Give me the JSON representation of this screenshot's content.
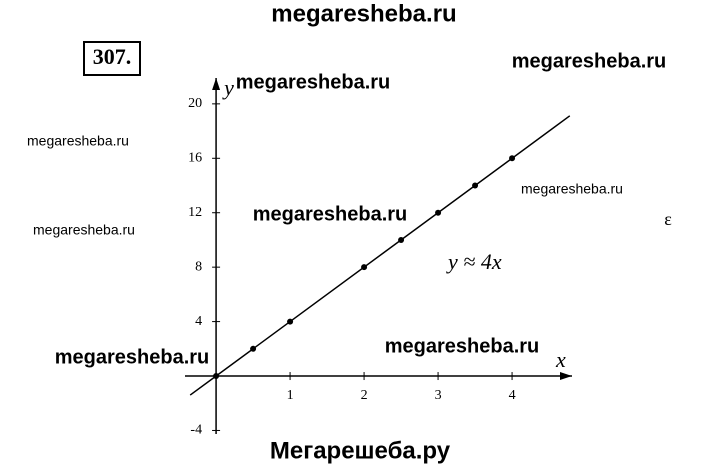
{
  "problem_number": "307.",
  "watermarks": [
    "megaresheba.ru",
    "megaresheba.ru",
    "megaresheba.ru",
    "megaresheba.ru",
    "megaresheba.ru",
    "megaresheba.ru",
    "megaresheba.ru",
    "megaresheba.ru",
    "megaresheba.ru",
    "Мегарешеба.ру"
  ],
  "margin_mark": "ε",
  "chart_data": {
    "type": "line",
    "x_label": "x",
    "y_label": "y",
    "annotation": "y ≈ 4x",
    "color": "#000000",
    "points": {
      "x": [
        0,
        0.5,
        1,
        2,
        2.5,
        3,
        3.5,
        4
      ],
      "values": [
        0,
        2,
        4,
        8,
        10,
        12,
        14,
        16
      ]
    },
    "fit_line": {
      "x": [
        -0.35,
        4.78
      ],
      "values": [
        -1.4,
        19.12
      ]
    },
    "xlim": [
      -0.42,
      4.81
    ],
    "ylim": [
      -4.26,
      21.9
    ],
    "xticks": [
      1,
      2,
      3,
      4
    ],
    "yticks": [
      -4,
      4,
      8,
      12,
      16,
      20
    ]
  }
}
